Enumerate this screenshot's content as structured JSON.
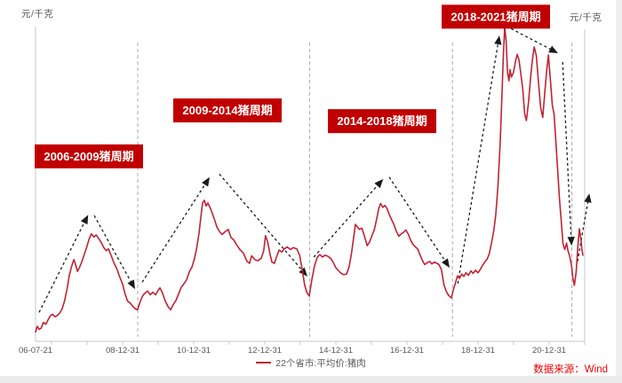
{
  "chart": {
    "unit_left": "元/千克",
    "unit_right": "元/千克",
    "legend_label": "22个省市:平均价:猪肉",
    "source": "数据来源：Wind",
    "source_color": "#e60000"
  },
  "chart_data": {
    "type": "line",
    "title": "",
    "xlabel": "",
    "ylabel": "元/千克",
    "x_unit": "decimal_year",
    "xlim": [
      2006.55,
      2022.0
    ],
    "ylim": [
      8.8,
      60.8
    ],
    "y_tick_labels_visible": false,
    "grid": false,
    "legend_position": "bottom-center",
    "axis_color": "#c9c9c9",
    "tick_label_color": "#595959",
    "divider_color": "#ababab",
    "arrow_color": "#1a1a1a",
    "annotation_box_color": "#c00000",
    "annotation_text_color": "#ffffff",
    "x_ticks": [
      {
        "t": 2006.55,
        "label": "06-07-21"
      },
      {
        "t": 2009.0,
        "label": "08-12-31"
      },
      {
        "t": 2011.0,
        "label": "10-12-31"
      },
      {
        "t": 2013.0,
        "label": "12-12-31"
      },
      {
        "t": 2015.0,
        "label": "14-12-31"
      },
      {
        "t": 2017.0,
        "label": "16-12-31"
      },
      {
        "t": 2019.0,
        "label": "18-12-31"
      },
      {
        "t": 2021.0,
        "label": "20-12-31"
      }
    ],
    "minor_year_ticks": [
      2007,
      2008,
      2009,
      2010,
      2011,
      2012,
      2013,
      2014,
      2015,
      2016,
      2017,
      2018,
      2019,
      2020,
      2021,
      2022
    ],
    "cycle_dividers": [
      2009.425,
      2014.26,
      2018.28,
      2021.64
    ],
    "cycle_labels": [
      {
        "text": "2006-2009猪周期",
        "t": 2008.05,
        "v": 38.2
      },
      {
        "text": "2009-2014猪周期",
        "t": 2011.95,
        "v": 45.5
      },
      {
        "text": "2014-2018猪周期",
        "t": 2016.3,
        "v": 43.8
      },
      {
        "text": "2018-2021猪周期",
        "t": 2019.5,
        "v": 60.4
      }
    ],
    "arrows": [
      {
        "from": [
          2006.65,
          13.4
        ],
        "to": [
          2008.03,
          28.9
        ]
      },
      {
        "from": [
          2008.2,
          28.8
        ],
        "to": [
          2009.35,
          17.1
        ]
      },
      {
        "from": [
          2009.55,
          18.2
        ],
        "to": [
          2011.45,
          34.9
        ]
      },
      {
        "from": [
          2011.72,
          35.4
        ],
        "to": [
          2014.2,
          19.1
        ]
      },
      {
        "from": [
          2014.38,
          22.2
        ],
        "to": [
          2016.33,
          34.6
        ]
      },
      {
        "from": [
          2016.5,
          34.9
        ],
        "to": [
          2018.2,
          20.5
        ]
      },
      {
        "from": [
          2018.43,
          18.0
        ],
        "to": [
          2019.6,
          57.4
        ]
      },
      {
        "from": [
          2019.93,
          58.5
        ],
        "to": [
          2021.25,
          54.6
        ]
      },
      {
        "from": [
          2021.38,
          53.2
        ],
        "to": [
          2021.63,
          24.0
        ]
      },
      {
        "from": [
          2021.8,
          21.5
        ],
        "to": [
          2022.13,
          32.3
        ]
      }
    ],
    "series": [
      {
        "name": "22个省市:平均价:猪肉",
        "color": "#bf2433",
        "points": [
          [
            2006.55,
            10.3
          ],
          [
            2006.6,
            11.2
          ],
          [
            2006.65,
            10.7
          ],
          [
            2006.71,
            10.9
          ],
          [
            2006.77,
            11.8
          ],
          [
            2006.84,
            11.5
          ],
          [
            2006.9,
            12.2
          ],
          [
            2006.97,
            12.9
          ],
          [
            2007.03,
            13.1
          ],
          [
            2007.1,
            12.7
          ],
          [
            2007.16,
            12.9
          ],
          [
            2007.23,
            13.3
          ],
          [
            2007.3,
            14.0
          ],
          [
            2007.37,
            15.3
          ],
          [
            2007.44,
            17.2
          ],
          [
            2007.5,
            19.3
          ],
          [
            2007.57,
            20.8
          ],
          [
            2007.63,
            21.8
          ],
          [
            2007.68,
            20.9
          ],
          [
            2007.73,
            19.9
          ],
          [
            2007.79,
            20.6
          ],
          [
            2007.85,
            21.4
          ],
          [
            2007.92,
            22.6
          ],
          [
            2007.99,
            23.8
          ],
          [
            2008.06,
            25.1
          ],
          [
            2008.12,
            25.9
          ],
          [
            2008.19,
            25.4
          ],
          [
            2008.26,
            25.7
          ],
          [
            2008.33,
            25.1
          ],
          [
            2008.4,
            24.5
          ],
          [
            2008.47,
            23.7
          ],
          [
            2008.54,
            23.2
          ],
          [
            2008.6,
            23.5
          ],
          [
            2008.68,
            22.4
          ],
          [
            2008.76,
            21.2
          ],
          [
            2008.84,
            20.3
          ],
          [
            2008.92,
            19.0
          ],
          [
            2009.0,
            17.9
          ],
          [
            2009.07,
            16.3
          ],
          [
            2009.14,
            15.2
          ],
          [
            2009.21,
            14.9
          ],
          [
            2009.28,
            14.4
          ],
          [
            2009.35,
            14.0
          ],
          [
            2009.42,
            13.8
          ],
          [
            2009.5,
            15.2
          ],
          [
            2009.57,
            16.1
          ],
          [
            2009.62,
            16.4
          ],
          [
            2009.7,
            16.8
          ],
          [
            2009.78,
            16.2
          ],
          [
            2009.85,
            16.6
          ],
          [
            2009.93,
            16.2
          ],
          [
            2010.0,
            16.9
          ],
          [
            2010.05,
            17.3
          ],
          [
            2010.12,
            16.5
          ],
          [
            2010.2,
            15.2
          ],
          [
            2010.28,
            14.3
          ],
          [
            2010.35,
            13.8
          ],
          [
            2010.42,
            14.6
          ],
          [
            2010.5,
            15.3
          ],
          [
            2010.58,
            16.4
          ],
          [
            2010.65,
            17.4
          ],
          [
            2010.72,
            17.9
          ],
          [
            2010.8,
            18.6
          ],
          [
            2010.88,
            19.9
          ],
          [
            2010.95,
            20.6
          ],
          [
            2011.02,
            21.9
          ],
          [
            2011.08,
            23.5
          ],
          [
            2011.15,
            26.0
          ],
          [
            2011.2,
            28.5
          ],
          [
            2011.25,
            30.8
          ],
          [
            2011.3,
            31.2
          ],
          [
            2011.35,
            30.3
          ],
          [
            2011.4,
            30.8
          ],
          [
            2011.48,
            29.8
          ],
          [
            2011.57,
            28.4
          ],
          [
            2011.65,
            27.0
          ],
          [
            2011.73,
            26.2
          ],
          [
            2011.8,
            25.8
          ],
          [
            2011.88,
            26.2
          ],
          [
            2011.97,
            26.6
          ],
          [
            2012.05,
            25.3
          ],
          [
            2012.13,
            24.9
          ],
          [
            2012.2,
            24.2
          ],
          [
            2012.3,
            23.4
          ],
          [
            2012.4,
            22.8
          ],
          [
            2012.5,
            21.5
          ],
          [
            2012.57,
            21.2
          ],
          [
            2012.63,
            22.4
          ],
          [
            2012.72,
            21.8
          ],
          [
            2012.8,
            21.6
          ],
          [
            2012.9,
            22.0
          ],
          [
            2012.97,
            23.2
          ],
          [
            2013.02,
            25.6
          ],
          [
            2013.08,
            24.6
          ],
          [
            2013.15,
            22.6
          ],
          [
            2013.2,
            21.4
          ],
          [
            2013.27,
            21.2
          ],
          [
            2013.33,
            22.2
          ],
          [
            2013.4,
            23.3
          ],
          [
            2013.48,
            23.0
          ],
          [
            2013.55,
            23.5
          ],
          [
            2013.63,
            23.8
          ],
          [
            2013.72,
            23.4
          ],
          [
            2013.8,
            23.7
          ],
          [
            2013.9,
            23.5
          ],
          [
            2013.98,
            22.5
          ],
          [
            2014.05,
            20.3
          ],
          [
            2014.12,
            17.8
          ],
          [
            2014.18,
            16.6
          ],
          [
            2014.25,
            16.0
          ],
          [
            2014.32,
            18.5
          ],
          [
            2014.4,
            20.8
          ],
          [
            2014.48,
            22.2
          ],
          [
            2014.55,
            22.6
          ],
          [
            2014.62,
            22.2
          ],
          [
            2014.7,
            22.5
          ],
          [
            2014.78,
            22.3
          ],
          [
            2014.85,
            22.0
          ],
          [
            2014.92,
            21.4
          ],
          [
            2015.0,
            20.5
          ],
          [
            2015.08,
            20.0
          ],
          [
            2015.15,
            19.6
          ],
          [
            2015.22,
            19.4
          ],
          [
            2015.3,
            19.5
          ],
          [
            2015.37,
            20.6
          ],
          [
            2015.44,
            22.8
          ],
          [
            2015.5,
            25.3
          ],
          [
            2015.55,
            27.4
          ],
          [
            2015.6,
            27.0
          ],
          [
            2015.66,
            26.6
          ],
          [
            2015.73,
            26.8
          ],
          [
            2015.8,
            25.6
          ],
          [
            2015.88,
            24.0
          ],
          [
            2015.95,
            24.6
          ],
          [
            2016.02,
            25.7
          ],
          [
            2016.08,
            26.5
          ],
          [
            2016.15,
            28.3
          ],
          [
            2016.21,
            30.0
          ],
          [
            2016.26,
            30.7
          ],
          [
            2016.32,
            30.1
          ],
          [
            2016.38,
            30.4
          ],
          [
            2016.44,
            29.9
          ],
          [
            2016.5,
            29.0
          ],
          [
            2016.57,
            28.1
          ],
          [
            2016.63,
            27.4
          ],
          [
            2016.7,
            26.3
          ],
          [
            2016.77,
            25.5
          ],
          [
            2016.84,
            25.9
          ],
          [
            2016.9,
            26.1
          ],
          [
            2016.97,
            26.5
          ],
          [
            2017.04,
            25.8
          ],
          [
            2017.1,
            24.9
          ],
          [
            2017.17,
            24.2
          ],
          [
            2017.24,
            23.8
          ],
          [
            2017.3,
            23.5
          ],
          [
            2017.37,
            22.5
          ],
          [
            2017.44,
            21.6
          ],
          [
            2017.5,
            21.0
          ],
          [
            2017.57,
            21.3
          ],
          [
            2017.64,
            21.5
          ],
          [
            2017.7,
            21.1
          ],
          [
            2017.77,
            21.4
          ],
          [
            2017.84,
            21.2
          ],
          [
            2017.9,
            21.0
          ],
          [
            2017.97,
            20.2
          ],
          [
            2018.04,
            17.8
          ],
          [
            2018.1,
            16.8
          ],
          [
            2018.17,
            16.1
          ],
          [
            2018.25,
            15.7
          ],
          [
            2018.3,
            16.9
          ],
          [
            2018.36,
            18.0
          ],
          [
            2018.42,
            19.2
          ],
          [
            2018.48,
            18.8
          ],
          [
            2018.54,
            19.5
          ],
          [
            2018.6,
            19.1
          ],
          [
            2018.66,
            19.7
          ],
          [
            2018.73,
            19.3
          ],
          [
            2018.8,
            20.0
          ],
          [
            2018.86,
            19.6
          ],
          [
            2018.93,
            20.1
          ],
          [
            2019.0,
            19.7
          ],
          [
            2019.06,
            20.2
          ],
          [
            2019.12,
            20.8
          ],
          [
            2019.19,
            21.4
          ],
          [
            2019.26,
            21.9
          ],
          [
            2019.32,
            22.8
          ],
          [
            2019.38,
            24.5
          ],
          [
            2019.44,
            26.3
          ],
          [
            2019.5,
            29.0
          ],
          [
            2019.56,
            33.5
          ],
          [
            2019.62,
            40.0
          ],
          [
            2019.67,
            47.5
          ],
          [
            2019.71,
            54.0
          ],
          [
            2019.75,
            58.8
          ],
          [
            2019.79,
            56.5
          ],
          [
            2019.83,
            51.5
          ],
          [
            2019.87,
            50.2
          ],
          [
            2019.9,
            52.0
          ],
          [
            2019.94,
            50.8
          ],
          [
            2020.0,
            51.6
          ],
          [
            2020.05,
            53.2
          ],
          [
            2020.1,
            54.4
          ],
          [
            2020.15,
            53.6
          ],
          [
            2020.2,
            51.5
          ],
          [
            2020.26,
            48.8
          ],
          [
            2020.31,
            45.0
          ],
          [
            2020.36,
            43.9
          ],
          [
            2020.42,
            46.8
          ],
          [
            2020.48,
            50.8
          ],
          [
            2020.53,
            53.6
          ],
          [
            2020.58,
            55.6
          ],
          [
            2020.64,
            54.2
          ],
          [
            2020.7,
            50.0
          ],
          [
            2020.76,
            46.0
          ],
          [
            2020.82,
            44.4
          ],
          [
            2020.87,
            47.8
          ],
          [
            2020.93,
            51.8
          ],
          [
            2020.98,
            54.3
          ],
          [
            2021.04,
            50.0
          ],
          [
            2021.09,
            46.3
          ],
          [
            2021.14,
            44.9
          ],
          [
            2021.19,
            40.5
          ],
          [
            2021.24,
            36.0
          ],
          [
            2021.29,
            31.5
          ],
          [
            2021.34,
            28.0
          ],
          [
            2021.39,
            24.3
          ],
          [
            2021.44,
            23.4
          ],
          [
            2021.49,
            24.4
          ],
          [
            2021.53,
            23.2
          ],
          [
            2021.58,
            22.3
          ],
          [
            2021.63,
            20.8
          ],
          [
            2021.67,
            18.8
          ],
          [
            2021.71,
            17.7
          ],
          [
            2021.76,
            19.8
          ],
          [
            2021.81,
            24.0
          ],
          [
            2021.85,
            26.7
          ],
          [
            2021.89,
            25.2
          ],
          [
            2021.92,
            23.5
          ],
          [
            2021.95,
            22.5
          ]
        ]
      }
    ]
  }
}
